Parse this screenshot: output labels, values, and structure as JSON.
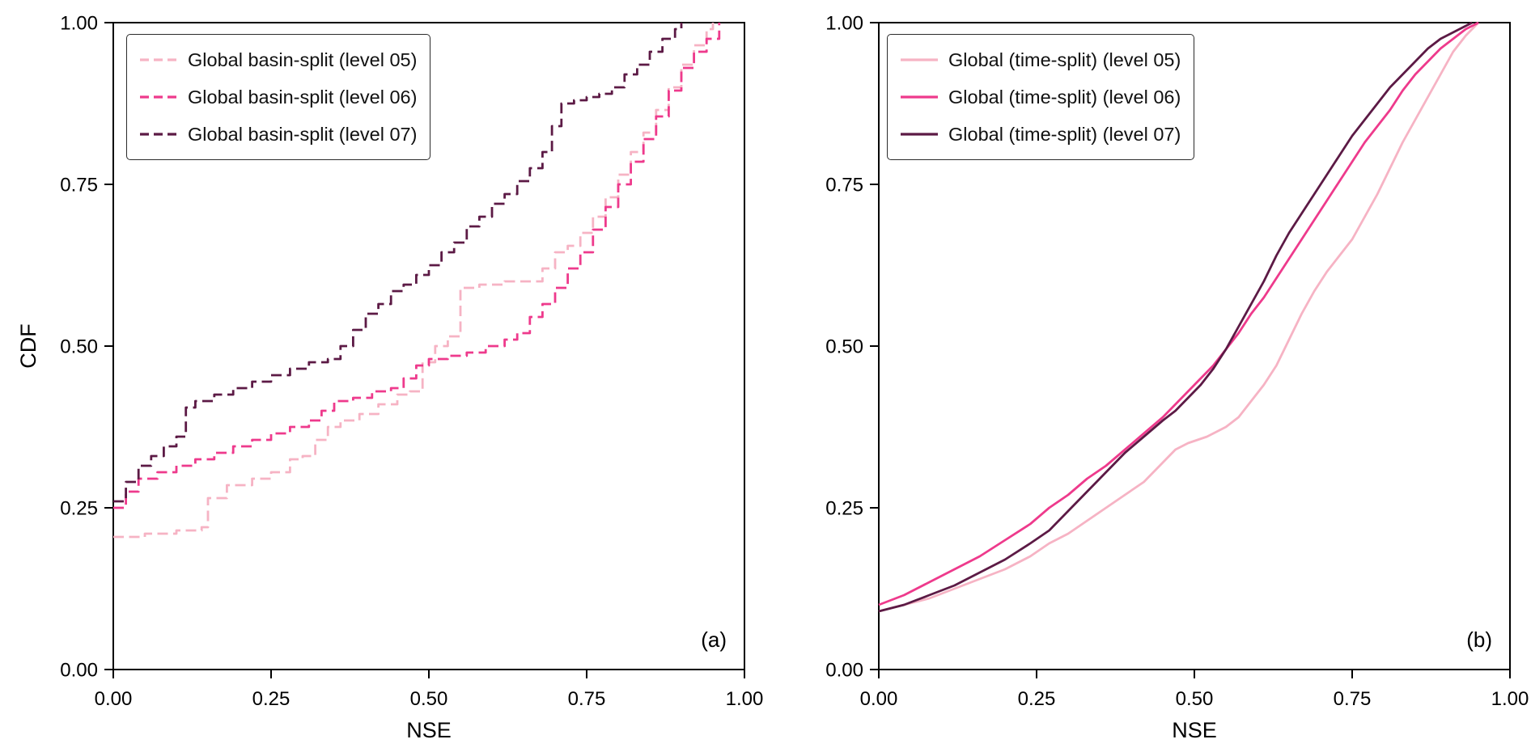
{
  "figure": {
    "background": "#ffffff",
    "axis_color": "#000000",
    "panel_count": 2
  },
  "chart_data": [
    {
      "type": "line",
      "title": "",
      "panel_label": "(a)",
      "xlabel": "NSE",
      "ylabel": "CDF",
      "xlim": [
        0,
        1
      ],
      "ylim": [
        0,
        1
      ],
      "x_ticks": [
        0,
        0.25,
        0.5,
        0.75,
        1.0
      ],
      "x_tick_labels": [
        "0.00",
        "0.25",
        "0.50",
        "0.75",
        "1.00"
      ],
      "y_ticks": [
        0,
        0.25,
        0.5,
        0.75,
        1.0
      ],
      "y_tick_labels": [
        "0.00",
        "0.25",
        "0.50",
        "0.75",
        "1.00"
      ],
      "grid": false,
      "legend_position": "upper-left",
      "interpolation": "step-after",
      "series": [
        {
          "name": "Global basin-split (level 05)",
          "color": "#F6B3C4",
          "line_style": "dashed",
          "points": [
            [
              0,
              0.205
            ],
            [
              0.05,
              0.21
            ],
            [
              0.1,
              0.215
            ],
            [
              0.14,
              0.22
            ],
            [
              0.15,
              0.265
            ],
            [
              0.18,
              0.285
            ],
            [
              0.22,
              0.295
            ],
            [
              0.25,
              0.305
            ],
            [
              0.28,
              0.325
            ],
            [
              0.3,
              0.33
            ],
            [
              0.32,
              0.355
            ],
            [
              0.34,
              0.375
            ],
            [
              0.36,
              0.385
            ],
            [
              0.39,
              0.395
            ],
            [
              0.42,
              0.41
            ],
            [
              0.45,
              0.425
            ],
            [
              0.47,
              0.43
            ],
            [
              0.49,
              0.475
            ],
            [
              0.51,
              0.5
            ],
            [
              0.53,
              0.515
            ],
            [
              0.55,
              0.59
            ],
            [
              0.58,
              0.595
            ],
            [
              0.62,
              0.6
            ],
            [
              0.66,
              0.6
            ],
            [
              0.68,
              0.62
            ],
            [
              0.7,
              0.645
            ],
            [
              0.72,
              0.655
            ],
            [
              0.74,
              0.675
            ],
            [
              0.76,
              0.7
            ],
            [
              0.78,
              0.73
            ],
            [
              0.8,
              0.765
            ],
            [
              0.82,
              0.8
            ],
            [
              0.84,
              0.83
            ],
            [
              0.86,
              0.865
            ],
            [
              0.88,
              0.9
            ],
            [
              0.9,
              0.935
            ],
            [
              0.92,
              0.965
            ],
            [
              0.94,
              0.99
            ],
            [
              0.95,
              1.0
            ]
          ]
        },
        {
          "name": "Global basin-split (level 06)",
          "color": "#EE3A8C",
          "line_style": "dashed",
          "points": [
            [
              0,
              0.25
            ],
            [
              0.02,
              0.275
            ],
            [
              0.04,
              0.295
            ],
            [
              0.07,
              0.305
            ],
            [
              0.1,
              0.315
            ],
            [
              0.13,
              0.325
            ],
            [
              0.16,
              0.335
            ],
            [
              0.19,
              0.345
            ],
            [
              0.22,
              0.355
            ],
            [
              0.25,
              0.365
            ],
            [
              0.28,
              0.375
            ],
            [
              0.31,
              0.385
            ],
            [
              0.33,
              0.4
            ],
            [
              0.35,
              0.415
            ],
            [
              0.38,
              0.42
            ],
            [
              0.41,
              0.43
            ],
            [
              0.44,
              0.435
            ],
            [
              0.46,
              0.45
            ],
            [
              0.48,
              0.47
            ],
            [
              0.5,
              0.48
            ],
            [
              0.53,
              0.485
            ],
            [
              0.56,
              0.49
            ],
            [
              0.59,
              0.5
            ],
            [
              0.62,
              0.51
            ],
            [
              0.64,
              0.52
            ],
            [
              0.66,
              0.545
            ],
            [
              0.68,
              0.565
            ],
            [
              0.7,
              0.59
            ],
            [
              0.72,
              0.62
            ],
            [
              0.74,
              0.645
            ],
            [
              0.76,
              0.68
            ],
            [
              0.78,
              0.715
            ],
            [
              0.8,
              0.75
            ],
            [
              0.82,
              0.785
            ],
            [
              0.84,
              0.82
            ],
            [
              0.86,
              0.855
            ],
            [
              0.88,
              0.895
            ],
            [
              0.9,
              0.93
            ],
            [
              0.92,
              0.955
            ],
            [
              0.94,
              0.975
            ],
            [
              0.96,
              1.0
            ]
          ]
        },
        {
          "name": "Global basin-split (level 07)",
          "color": "#5C1A45",
          "line_style": "dashed",
          "points": [
            [
              0,
              0.26
            ],
            [
              0.02,
              0.29
            ],
            [
              0.04,
              0.315
            ],
            [
              0.06,
              0.33
            ],
            [
              0.08,
              0.345
            ],
            [
              0.1,
              0.36
            ],
            [
              0.115,
              0.405
            ],
            [
              0.13,
              0.415
            ],
            [
              0.16,
              0.425
            ],
            [
              0.19,
              0.435
            ],
            [
              0.22,
              0.445
            ],
            [
              0.25,
              0.455
            ],
            [
              0.28,
              0.465
            ],
            [
              0.31,
              0.475
            ],
            [
              0.34,
              0.48
            ],
            [
              0.36,
              0.5
            ],
            [
              0.38,
              0.525
            ],
            [
              0.4,
              0.55
            ],
            [
              0.42,
              0.565
            ],
            [
              0.44,
              0.585
            ],
            [
              0.46,
              0.595
            ],
            [
              0.48,
              0.61
            ],
            [
              0.5,
              0.625
            ],
            [
              0.52,
              0.645
            ],
            [
              0.54,
              0.66
            ],
            [
              0.56,
              0.685
            ],
            [
              0.58,
              0.7
            ],
            [
              0.6,
              0.72
            ],
            [
              0.62,
              0.735
            ],
            [
              0.64,
              0.755
            ],
            [
              0.66,
              0.775
            ],
            [
              0.68,
              0.8
            ],
            [
              0.695,
              0.84
            ],
            [
              0.71,
              0.875
            ],
            [
              0.73,
              0.88
            ],
            [
              0.75,
              0.885
            ],
            [
              0.77,
              0.89
            ],
            [
              0.79,
              0.9
            ],
            [
              0.81,
              0.92
            ],
            [
              0.83,
              0.935
            ],
            [
              0.85,
              0.955
            ],
            [
              0.87,
              0.975
            ],
            [
              0.89,
              0.99
            ],
            [
              0.9,
              1.0
            ]
          ]
        }
      ]
    },
    {
      "type": "line",
      "title": "",
      "panel_label": "(b)",
      "xlabel": "NSE",
      "ylabel": "",
      "xlim": [
        0,
        1
      ],
      "ylim": [
        0,
        1
      ],
      "x_ticks": [
        0,
        0.25,
        0.5,
        0.75,
        1.0
      ],
      "x_tick_labels": [
        "0.00",
        "0.25",
        "0.50",
        "0.75",
        "1.00"
      ],
      "y_ticks": [
        0,
        0.25,
        0.5,
        0.75,
        1.0
      ],
      "y_tick_labels": [
        "0.00",
        "0.25",
        "0.50",
        "0.75",
        "1.00"
      ],
      "grid": false,
      "legend_position": "upper-left",
      "interpolation": "linear",
      "series": [
        {
          "name": "Global (time-split) (level 05)",
          "color": "#F6B3C4",
          "line_style": "solid",
          "points": [
            [
              0,
              0.09
            ],
            [
              0.04,
              0.1
            ],
            [
              0.08,
              0.11
            ],
            [
              0.12,
              0.125
            ],
            [
              0.16,
              0.14
            ],
            [
              0.2,
              0.155
            ],
            [
              0.24,
              0.175
            ],
            [
              0.27,
              0.195
            ],
            [
              0.3,
              0.21
            ],
            [
              0.33,
              0.23
            ],
            [
              0.36,
              0.25
            ],
            [
              0.39,
              0.27
            ],
            [
              0.42,
              0.29
            ],
            [
              0.45,
              0.32
            ],
            [
              0.47,
              0.34
            ],
            [
              0.49,
              0.35
            ],
            [
              0.52,
              0.36
            ],
            [
              0.55,
              0.375
            ],
            [
              0.57,
              0.39
            ],
            [
              0.59,
              0.415
            ],
            [
              0.61,
              0.44
            ],
            [
              0.63,
              0.47
            ],
            [
              0.65,
              0.51
            ],
            [
              0.67,
              0.55
            ],
            [
              0.69,
              0.585
            ],
            [
              0.71,
              0.615
            ],
            [
              0.73,
              0.64
            ],
            [
              0.75,
              0.665
            ],
            [
              0.77,
              0.7
            ],
            [
              0.79,
              0.735
            ],
            [
              0.81,
              0.775
            ],
            [
              0.83,
              0.815
            ],
            [
              0.85,
              0.85
            ],
            [
              0.87,
              0.885
            ],
            [
              0.89,
              0.92
            ],
            [
              0.91,
              0.955
            ],
            [
              0.93,
              0.98
            ],
            [
              0.95,
              1.0
            ]
          ]
        },
        {
          "name": "Global (time-split) (level 06)",
          "color": "#EE3A8C",
          "line_style": "solid",
          "points": [
            [
              0,
              0.1
            ],
            [
              0.04,
              0.115
            ],
            [
              0.08,
              0.135
            ],
            [
              0.12,
              0.155
            ],
            [
              0.16,
              0.175
            ],
            [
              0.2,
              0.2
            ],
            [
              0.24,
              0.225
            ],
            [
              0.27,
              0.25
            ],
            [
              0.3,
              0.27
            ],
            [
              0.33,
              0.295
            ],
            [
              0.36,
              0.315
            ],
            [
              0.39,
              0.34
            ],
            [
              0.42,
              0.365
            ],
            [
              0.45,
              0.39
            ],
            [
              0.47,
              0.41
            ],
            [
              0.49,
              0.43
            ],
            [
              0.51,
              0.45
            ],
            [
              0.53,
              0.47
            ],
            [
              0.55,
              0.495
            ],
            [
              0.57,
              0.52
            ],
            [
              0.59,
              0.55
            ],
            [
              0.61,
              0.575
            ],
            [
              0.63,
              0.605
            ],
            [
              0.65,
              0.635
            ],
            [
              0.67,
              0.665
            ],
            [
              0.69,
              0.695
            ],
            [
              0.71,
              0.725
            ],
            [
              0.73,
              0.755
            ],
            [
              0.75,
              0.785
            ],
            [
              0.77,
              0.815
            ],
            [
              0.79,
              0.84
            ],
            [
              0.81,
              0.865
            ],
            [
              0.83,
              0.895
            ],
            [
              0.85,
              0.92
            ],
            [
              0.87,
              0.94
            ],
            [
              0.89,
              0.96
            ],
            [
              0.91,
              0.975
            ],
            [
              0.93,
              0.99
            ],
            [
              0.95,
              1.0
            ]
          ]
        },
        {
          "name": "Global (time-split) (level 07)",
          "color": "#5C1A45",
          "line_style": "solid",
          "points": [
            [
              0,
              0.09
            ],
            [
              0.04,
              0.1
            ],
            [
              0.08,
              0.115
            ],
            [
              0.12,
              0.13
            ],
            [
              0.16,
              0.15
            ],
            [
              0.2,
              0.17
            ],
            [
              0.24,
              0.195
            ],
            [
              0.27,
              0.215
            ],
            [
              0.3,
              0.245
            ],
            [
              0.33,
              0.275
            ],
            [
              0.36,
              0.305
            ],
            [
              0.39,
              0.335
            ],
            [
              0.42,
              0.36
            ],
            [
              0.45,
              0.385
            ],
            [
              0.47,
              0.4
            ],
            [
              0.49,
              0.42
            ],
            [
              0.51,
              0.44
            ],
            [
              0.53,
              0.465
            ],
            [
              0.55,
              0.495
            ],
            [
              0.57,
              0.53
            ],
            [
              0.59,
              0.565
            ],
            [
              0.61,
              0.6
            ],
            [
              0.63,
              0.64
            ],
            [
              0.65,
              0.675
            ],
            [
              0.67,
              0.705
            ],
            [
              0.69,
              0.735
            ],
            [
              0.71,
              0.765
            ],
            [
              0.73,
              0.795
            ],
            [
              0.75,
              0.825
            ],
            [
              0.77,
              0.85
            ],
            [
              0.79,
              0.875
            ],
            [
              0.81,
              0.9
            ],
            [
              0.83,
              0.92
            ],
            [
              0.85,
              0.94
            ],
            [
              0.87,
              0.96
            ],
            [
              0.89,
              0.975
            ],
            [
              0.91,
              0.985
            ],
            [
              0.93,
              0.995
            ],
            [
              0.94,
              1.0
            ]
          ]
        }
      ]
    }
  ]
}
